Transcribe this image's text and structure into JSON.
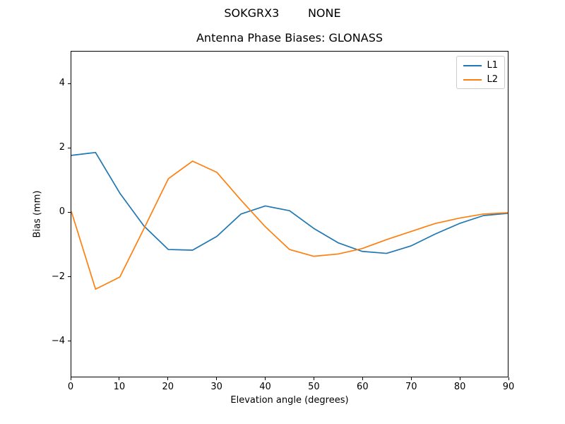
{
  "suptitle": "SOKGRX3        NONE",
  "title": "Antenna Phase Biases: GLONASS",
  "chart_data": {
    "type": "line",
    "title": "Antenna Phase Biases: GLONASS",
    "suptitle": "SOKGRX3        NONE",
    "xlabel": "Elevation angle (degrees)",
    "ylabel": "Bias (mm)",
    "xlim": [
      0,
      90
    ],
    "ylim": [
      -5.13,
      5.02
    ],
    "grid": false,
    "legend_position": "upper right",
    "x_ticks": [
      0,
      10,
      20,
      30,
      40,
      50,
      60,
      70,
      80,
      90
    ],
    "x_tick_labels": [
      "0",
      "10",
      "20",
      "30",
      "40",
      "50",
      "60",
      "70",
      "80",
      "90"
    ],
    "y_ticks": [
      -4,
      -2,
      0,
      2,
      4
    ],
    "y_tick_labels": [
      "−4",
      "−2",
      "0",
      "2",
      "4"
    ],
    "x": [
      0,
      5,
      10,
      15,
      20,
      25,
      30,
      35,
      40,
      45,
      50,
      55,
      60,
      65,
      70,
      75,
      80,
      85,
      90
    ],
    "series": [
      {
        "name": "L1",
        "color": "#1f77b4",
        "values": [
          1.78,
          1.87,
          0.6,
          -0.43,
          -1.16,
          -1.18,
          -0.75,
          -0.05,
          0.2,
          0.05,
          -0.5,
          -0.95,
          -1.22,
          -1.28,
          -1.05,
          -0.68,
          -0.35,
          -0.1,
          -0.03
        ]
      },
      {
        "name": "L2",
        "color": "#ff7f0e",
        "values": [
          0.03,
          -2.4,
          -2.02,
          -0.5,
          1.05,
          1.6,
          1.25,
          0.38,
          -0.45,
          -1.16,
          -1.37,
          -1.3,
          -1.13,
          -0.85,
          -0.6,
          -0.35,
          -0.18,
          -0.05,
          -0.01
        ]
      }
    ]
  }
}
